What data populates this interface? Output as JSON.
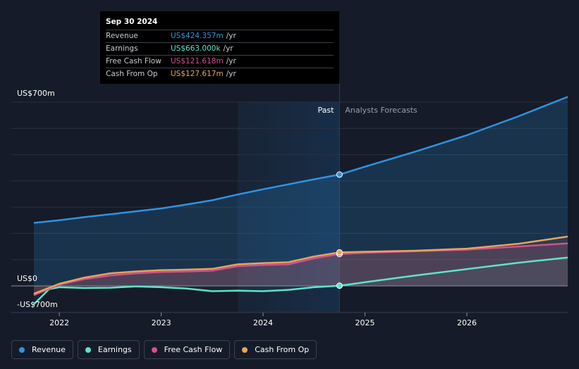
{
  "colors": {
    "revenue": "#2d94e3",
    "earnings": "#5fe3c9",
    "free_cash_flow": "#d3508f",
    "cash_from_op": "#e8a558",
    "background": "#151b28",
    "grid": "#2a3140"
  },
  "tooltip": {
    "date": "Sep 30 2024",
    "rows": [
      {
        "label": "Revenue",
        "value": "US$424.357m",
        "unit": "/yr",
        "color": "#2d94e3"
      },
      {
        "label": "Earnings",
        "value": "US$663.000k",
        "unit": "/yr",
        "color": "#5fe3c9"
      },
      {
        "label": "Free Cash Flow",
        "value": "US$121.618m",
        "unit": "/yr",
        "color": "#d3508f"
      },
      {
        "label": "Cash From Op",
        "value": "US$127.617m",
        "unit": "/yr",
        "color": "#e8a558"
      }
    ]
  },
  "chart_data": {
    "type": "line",
    "y_axis_labels": [
      "US$700m",
      "US$0",
      "-US$700m"
    ],
    "ylim": [
      -100,
      700
    ],
    "xlim": [
      2021.75,
      2026.99
    ],
    "x_ticks": [
      {
        "value": 2022,
        "label": "2022"
      },
      {
        "value": 2023,
        "label": "2023"
      },
      {
        "value": 2024,
        "label": "2024"
      },
      {
        "value": 2025,
        "label": "2025"
      },
      {
        "value": 2026,
        "label": "2026"
      }
    ],
    "divider_x": 2024.75,
    "highlight_start_x": 2023.75,
    "region_labels": {
      "past": "Past",
      "forecast": "Analysts Forecasts"
    },
    "grid": true,
    "legend_position": "bottom-left",
    "series": [
      {
        "name": "Revenue",
        "key": "revenue",
        "points": [
          [
            2021.75,
            240
          ],
          [
            2022.0,
            250
          ],
          [
            2022.25,
            262
          ],
          [
            2022.5,
            273
          ],
          [
            2022.75,
            284
          ],
          [
            2023.0,
            295
          ],
          [
            2023.25,
            310
          ],
          [
            2023.5,
            326
          ],
          [
            2023.75,
            348
          ],
          [
            2024.0,
            368
          ],
          [
            2024.25,
            387
          ],
          [
            2024.5,
            406
          ],
          [
            2024.75,
            424
          ]
        ],
        "forecast": [
          [
            2024.75,
            424
          ],
          [
            2025.0,
            454
          ],
          [
            2025.5,
            512
          ],
          [
            2026.0,
            574
          ],
          [
            2026.5,
            645
          ],
          [
            2026.99,
            720
          ]
        ]
      },
      {
        "name": "Earnings",
        "key": "earnings",
        "points": [
          [
            2021.75,
            -70
          ],
          [
            2021.9,
            -12
          ],
          [
            2022.0,
            -5
          ],
          [
            2022.25,
            -8
          ],
          [
            2022.5,
            -7
          ],
          [
            2022.75,
            -2
          ],
          [
            2023.0,
            -5
          ],
          [
            2023.25,
            -10
          ],
          [
            2023.5,
            -20
          ],
          [
            2023.75,
            -18
          ],
          [
            2024.0,
            -20
          ],
          [
            2024.25,
            -15
          ],
          [
            2024.5,
            -5
          ],
          [
            2024.75,
            0.663
          ]
        ],
        "forecast": [
          [
            2024.75,
            0.663
          ],
          [
            2025.0,
            14
          ],
          [
            2025.5,
            40
          ],
          [
            2026.0,
            64
          ],
          [
            2026.5,
            88
          ],
          [
            2026.99,
            108
          ]
        ]
      },
      {
        "name": "Free Cash Flow",
        "key": "free_cash_flow",
        "points": [
          [
            2021.75,
            -35
          ],
          [
            2022.0,
            5
          ],
          [
            2022.25,
            26
          ],
          [
            2022.5,
            40
          ],
          [
            2022.75,
            48
          ],
          [
            2023.0,
            53
          ],
          [
            2023.25,
            55
          ],
          [
            2023.5,
            58
          ],
          [
            2023.75,
            75
          ],
          [
            2024.0,
            80
          ],
          [
            2024.25,
            82
          ],
          [
            2024.5,
            105
          ],
          [
            2024.75,
            121.6
          ]
        ],
        "forecast": [
          [
            2024.75,
            121.6
          ],
          [
            2025.0,
            126
          ],
          [
            2025.5,
            132
          ],
          [
            2026.0,
            138
          ],
          [
            2026.5,
            150
          ],
          [
            2026.99,
            162
          ]
        ]
      },
      {
        "name": "Cash From Op",
        "key": "cash_from_op",
        "points": [
          [
            2021.75,
            -30
          ],
          [
            2022.0,
            8
          ],
          [
            2022.25,
            32
          ],
          [
            2022.5,
            48
          ],
          [
            2022.75,
            55
          ],
          [
            2023.0,
            60
          ],
          [
            2023.25,
            62
          ],
          [
            2023.5,
            65
          ],
          [
            2023.75,
            82
          ],
          [
            2024.0,
            87
          ],
          [
            2024.25,
            90
          ],
          [
            2024.5,
            112
          ],
          [
            2024.75,
            127.6
          ]
        ],
        "forecast": [
          [
            2024.75,
            127.6
          ],
          [
            2025.0,
            130
          ],
          [
            2025.5,
            134
          ],
          [
            2026.0,
            142
          ],
          [
            2026.5,
            160
          ],
          [
            2026.99,
            188
          ]
        ]
      }
    ]
  },
  "legend": [
    {
      "label": "Revenue",
      "color": "#2d94e3"
    },
    {
      "label": "Earnings",
      "color": "#5fe3c9"
    },
    {
      "label": "Free Cash Flow",
      "color": "#d3508f"
    },
    {
      "label": "Cash From Op",
      "color": "#e8a558"
    }
  ]
}
